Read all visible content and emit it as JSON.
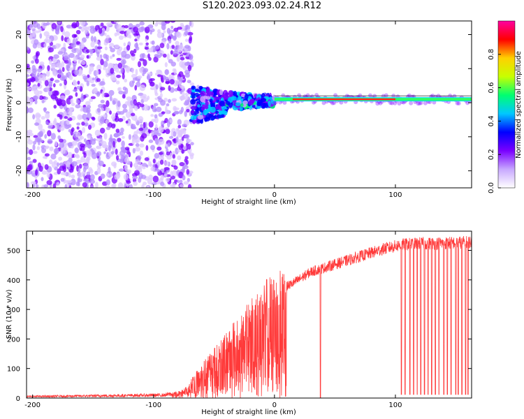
{
  "title": "S120.2023.093.02.24.R12",
  "chart_data": [
    {
      "type": "heatmap",
      "xlabel": "Height of straight line (km)",
      "ylabel": "Frequency (Hz)",
      "xlim": [
        -205,
        163
      ],
      "ylim": [
        -25,
        24
      ],
      "x_ticks": [
        -200,
        -100,
        0,
        100
      ],
      "y_ticks": [
        -20,
        -10,
        0,
        10,
        20
      ],
      "colorbar": {
        "label": "Normalized spectral amplitude",
        "range": [
          0,
          1
        ],
        "ticks": [
          0.0,
          0.2,
          0.4,
          0.6,
          0.8
        ],
        "colors": [
          "#ffffff",
          "#c8a8ff",
          "#7a00ff",
          "#0000ff",
          "#00c8ff",
          "#00ff70",
          "#c8ff00",
          "#ffd000",
          "#ff0000",
          "#ff00a0"
        ]
      },
      "regions": [
        {
          "x": [
            -205,
            -68
          ],
          "freq": [
            -25,
            24
          ],
          "amplitude": 0.15,
          "description": "noise"
        },
        {
          "x": [
            -68,
            -40
          ],
          "freq": [
            -6,
            5
          ],
          "amplitude": 0.4
        },
        {
          "x": [
            -40,
            0
          ],
          "freq": [
            -2,
            3
          ],
          "amplitude": 0.45
        },
        {
          "x": [
            0,
            163
          ],
          "freq": [
            0.5,
            1.5
          ],
          "amplitude": 0.9
        }
      ],
      "trace_frequency_hz": 1
    },
    {
      "type": "line",
      "xlabel": "Height of straight line (km)",
      "ylabel": "SNR (10 * v/v)",
      "xlim": [
        -205,
        163
      ],
      "ylim": [
        0,
        565
      ],
      "x_ticks": [
        -200,
        -100,
        0,
        100
      ],
      "y_ticks": [
        0,
        100,
        200,
        300,
        400,
        500
      ],
      "line_color": "#ff3a3a",
      "envelope": {
        "x": [
          -205,
          -90,
          -75,
          -60,
          -45,
          -30,
          -15,
          0,
          15,
          30,
          45,
          60,
          75,
          90,
          105,
          120,
          135,
          150,
          163
        ],
        "y": [
          5,
          10,
          25,
          100,
          170,
          230,
          300,
          370,
          400,
          440,
          460,
          480,
          500,
          520,
          535,
          540,
          540,
          542,
          545
        ]
      },
      "dropouts_x": [
        38,
        105,
        108,
        112,
        115,
        118,
        121,
        124,
        127,
        130,
        133,
        136,
        140,
        143,
        146,
        150,
        152,
        155,
        158,
        160
      ]
    }
  ]
}
